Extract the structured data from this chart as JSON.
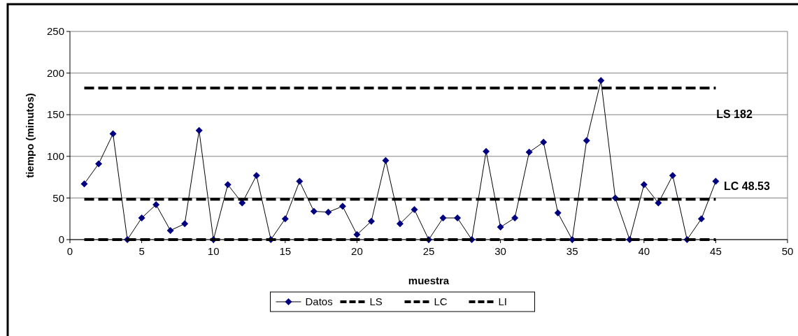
{
  "chart_data": {
    "type": "line",
    "xlabel": "muestra",
    "ylabel": "tiempo (minutos)",
    "xlim": [
      0,
      50
    ],
    "xticks": [
      0,
      5,
      10,
      15,
      20,
      25,
      30,
      35,
      40,
      45,
      50
    ],
    "ylim": [
      0,
      250
    ],
    "yticks": [
      0,
      50,
      100,
      150,
      200,
      250
    ],
    "grid": "y",
    "legend": "bottom",
    "series": [
      {
        "name": "Datos",
        "color": "#000080",
        "marker": "diamond",
        "line_style": "solid",
        "x": [
          1,
          2,
          3,
          4,
          5,
          6,
          7,
          8,
          9,
          10,
          11,
          12,
          13,
          14,
          15,
          16,
          17,
          18,
          19,
          20,
          21,
          22,
          23,
          24,
          25,
          26,
          27,
          28,
          29,
          30,
          31,
          32,
          33,
          34,
          35,
          36,
          37,
          38,
          39,
          40,
          41,
          42,
          43,
          44,
          45
        ],
        "values": [
          67,
          91,
          127,
          0,
          26,
          42,
          11,
          19,
          131,
          0,
          66,
          44,
          77,
          0,
          25,
          70,
          34,
          33,
          40,
          6,
          22,
          95,
          19,
          36,
          0,
          26,
          26,
          0,
          106,
          15,
          26,
          105,
          117,
          32,
          0,
          119,
          191,
          50,
          0,
          66,
          44,
          77,
          0,
          25,
          70
        ]
      },
      {
        "name": "LS",
        "color": "#000000",
        "marker": "none",
        "line_style": "dashed",
        "x": [
          1,
          45
        ],
        "values": [
          182,
          182
        ]
      },
      {
        "name": "LC",
        "color": "#000000",
        "marker": "none",
        "line_style": "dashed",
        "x": [
          1,
          45
        ],
        "values": [
          48.53,
          48.53
        ]
      },
      {
        "name": "LI",
        "color": "#000000",
        "marker": "none",
        "line_style": "dashed",
        "x": [
          1,
          45
        ],
        "values": [
          0,
          0
        ]
      }
    ],
    "annotations": [
      "LS 182",
      "LC 48.53"
    ]
  }
}
